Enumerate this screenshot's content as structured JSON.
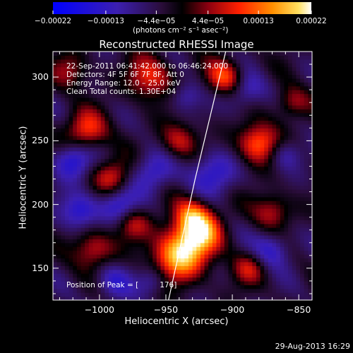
{
  "chart_data": {
    "type": "heatmap",
    "title": "Reconstructed RHESSI Image",
    "xlabel": "Heliocentric X (arcsec)",
    "ylabel": "Heliocentric Y (arcsec)",
    "xlim": [
      -1035,
      -840
    ],
    "ylim": [
      125,
      320
    ],
    "xticks": [
      -1000,
      -950,
      -900,
      -850
    ],
    "xtick_labels": [
      "−1000",
      "−950",
      "−900",
      "−850"
    ],
    "yticks": [
      150,
      200,
      250,
      300
    ],
    "ytick_labels": [
      "150",
      "200",
      "250",
      "300"
    ],
    "colorbar": {
      "ticks": [
        -0.00022,
        -0.00013,
        -4.4e-05,
        4.4e-05,
        0.00013,
        0.00022
      ],
      "tick_labels": [
        "−0.00022",
        "−0.00013",
        "−4.4e−05",
        "4.4e−05",
        "0.00013",
        "0.00022"
      ],
      "unit_label": "(photons cm⁻² s⁻¹ asec⁻²)",
      "range": [
        -0.00022,
        0.00022
      ]
    },
    "annotations": [
      "22‑Sep‑2011 06:41:42.000 to 06:46:24.000",
      "Detectors: 4F 5F 6F 7F 8F, Att 0",
      "Energy Range: 12.0 – 25.0 keV",
      "Clean     Total counts: 1.30E+04"
    ],
    "peak_label": "Position of Peak = [",
    "peak_value": "176]",
    "limb_line": [
      [
        -948,
        125
      ],
      [
        -928,
        220
      ],
      [
        -905,
        320
      ]
    ],
    "peaks": [
      {
        "x": -940,
        "y": 160,
        "v": 1.0,
        "r": 14
      },
      {
        "x": -925,
        "y": 178,
        "v": 0.85,
        "r": 12
      },
      {
        "x": -930,
        "y": 192,
        "v": 0.6,
        "r": 10
      },
      {
        "x": -880,
        "y": 248,
        "v": 0.8,
        "r": 11
      },
      {
        "x": -905,
        "y": 300,
        "v": 0.7,
        "r": 10
      },
      {
        "x": -962,
        "y": 300,
        "v": 0.6,
        "r": 12
      },
      {
        "x": -1010,
        "y": 258,
        "v": 0.65,
        "r": 11
      },
      {
        "x": -990,
        "y": 222,
        "v": 0.55,
        "r": 10
      },
      {
        "x": -1005,
        "y": 165,
        "v": 0.55,
        "r": 11
      },
      {
        "x": -975,
        "y": 185,
        "v": 0.45,
        "r": 9
      },
      {
        "x": -870,
        "y": 195,
        "v": 0.5,
        "r": 10
      },
      {
        "x": -888,
        "y": 150,
        "v": 0.45,
        "r": 9
      },
      {
        "x": -855,
        "y": 280,
        "v": 0.45,
        "r": 9
      },
      {
        "x": -940,
        "y": 250,
        "v": 0.5,
        "r": 10
      },
      {
        "x": -1022,
        "y": 305,
        "v": 0.4,
        "r": 10
      }
    ],
    "troughs": [
      {
        "x": -1020,
        "y": 235,
        "v": -0.6,
        "r": 10
      },
      {
        "x": -1015,
        "y": 195,
        "v": -0.55,
        "r": 10
      },
      {
        "x": -985,
        "y": 200,
        "v": -0.5,
        "r": 10
      },
      {
        "x": -960,
        "y": 225,
        "v": -0.45,
        "r": 11
      },
      {
        "x": -915,
        "y": 225,
        "v": -0.5,
        "r": 12
      },
      {
        "x": -890,
        "y": 290,
        "v": -0.45,
        "r": 10
      },
      {
        "x": -860,
        "y": 240,
        "v": -0.4,
        "r": 9
      },
      {
        "x": -870,
        "y": 165,
        "v": -0.45,
        "r": 10
      },
      {
        "x": -990,
        "y": 140,
        "v": -0.4,
        "r": 10
      },
      {
        "x": -960,
        "y": 140,
        "v": -0.35,
        "r": 8
      },
      {
        "x": -935,
        "y": 285,
        "v": -0.35,
        "r": 8
      }
    ]
  },
  "footer": {
    "date": "29-Aug-2013 16:29"
  }
}
